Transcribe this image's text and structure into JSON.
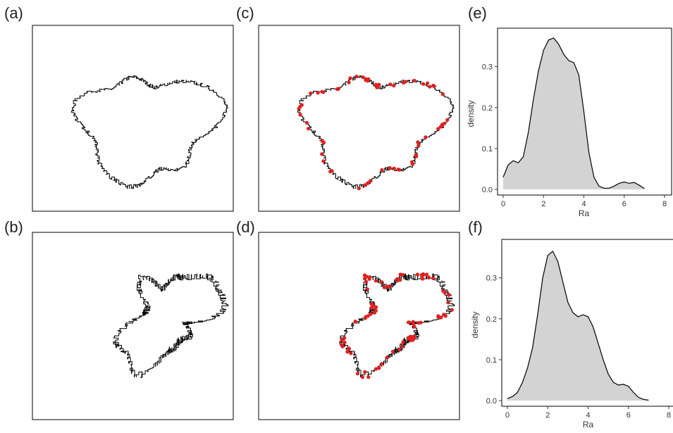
{
  "panels": {
    "a": {
      "label": "(a)"
    },
    "b": {
      "label": "(b)"
    },
    "c": {
      "label": "(c)"
    },
    "d": {
      "label": "(d)"
    },
    "e": {
      "label": "(e)"
    },
    "f": {
      "label": "(f)"
    }
  },
  "colors": {
    "outline": "#000000",
    "points": "#e02020",
    "density_fill": "#d3d3d3"
  },
  "chart_data": [
    {
      "panel": "e",
      "type": "area",
      "xlabel": "Ra",
      "ylabel": "density",
      "xlim": [
        0,
        8
      ],
      "ylim": [
        0,
        0.37
      ],
      "xticks": [
        "0",
        "2",
        "4",
        "6",
        "8"
      ],
      "yticks": [
        "0.0",
        "0.1",
        "0.2",
        "0.3"
      ],
      "grid": false,
      "x": [
        0,
        0.25,
        0.5,
        0.75,
        1.0,
        1.25,
        1.5,
        1.75,
        2.0,
        2.25,
        2.5,
        2.75,
        3.0,
        3.25,
        3.5,
        3.75,
        4.0,
        4.25,
        4.5,
        4.75,
        5.0,
        5.25,
        5.5,
        5.75,
        6.0,
        6.25,
        6.5,
        6.75,
        7.0
      ],
      "y": [
        0.03,
        0.06,
        0.07,
        0.065,
        0.08,
        0.14,
        0.22,
        0.29,
        0.34,
        0.365,
        0.37,
        0.355,
        0.33,
        0.315,
        0.31,
        0.28,
        0.19,
        0.09,
        0.03,
        0.008,
        0.003,
        0.003,
        0.008,
        0.015,
        0.018,
        0.015,
        0.017,
        0.01,
        0.002
      ]
    },
    {
      "panel": "f",
      "type": "area",
      "xlabel": "Ra",
      "ylabel": "density",
      "xlim": [
        0,
        8
      ],
      "ylim": [
        0,
        0.37
      ],
      "xticks": [
        "0",
        "2",
        "4",
        "6",
        "8"
      ],
      "yticks": [
        "0.0",
        "0.1",
        "0.2",
        "0.3"
      ],
      "grid": false,
      "x": [
        0,
        0.25,
        0.5,
        0.75,
        1.0,
        1.25,
        1.5,
        1.75,
        2.0,
        2.25,
        2.5,
        2.75,
        3.0,
        3.25,
        3.5,
        3.75,
        4.0,
        4.25,
        4.5,
        4.75,
        5.0,
        5.25,
        5.5,
        5.75,
        6.0,
        6.25,
        6.5,
        6.75,
        7.0
      ],
      "y": [
        0.005,
        0.01,
        0.02,
        0.045,
        0.08,
        0.13,
        0.21,
        0.3,
        0.355,
        0.365,
        0.34,
        0.29,
        0.24,
        0.215,
        0.205,
        0.21,
        0.205,
        0.18,
        0.14,
        0.1,
        0.065,
        0.045,
        0.038,
        0.04,
        0.035,
        0.02,
        0.008,
        0.003,
        0.001
      ]
    }
  ]
}
